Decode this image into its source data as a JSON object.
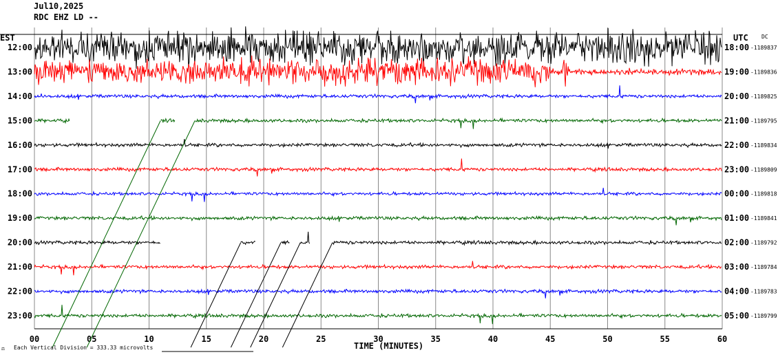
{
  "header": {
    "date": "Jul10,2025",
    "station": "RDC EHZ LD --",
    "dc_label": "DC"
  },
  "footer": {
    "scale_note": "Each Vertical Division = 333.33 microvolts",
    "corner_mark": "⚖"
  },
  "chart_data": {
    "type": "line",
    "title": "",
    "xlabel": "TIME (MINUTES)",
    "ylabel_left": "EST",
    "ylabel_right": "UTC",
    "xlim": [
      0,
      60
    ],
    "x_ticks": [
      "00",
      "05",
      "10",
      "15",
      "20",
      "25",
      "30",
      "35",
      "40",
      "45",
      "50",
      "55",
      "60"
    ],
    "colors": [
      "#000000",
      "#ff0000",
      "#0000ff",
      "#006600"
    ],
    "rows": [
      {
        "est": "12:00",
        "utc": "18:00",
        "dc": "-1189837",
        "color": "#000000",
        "amp": 1.9,
        "gaps": []
      },
      {
        "est": "13:00",
        "utc": "19:00",
        "dc": "-1189836",
        "color": "#ff0000",
        "amp": 0.35,
        "gaps": []
      },
      {
        "est": "14:00",
        "utc": "20:00",
        "dc": "-1189825",
        "color": "#0000ff",
        "amp": 0.2,
        "gaps": []
      },
      {
        "est": "15:00",
        "utc": "21:00",
        "dc": "-1189795",
        "color": "#006600",
        "amp": 0.2,
        "gaps": [
          [
            3.1,
            11.0
          ],
          [
            12.3,
            14.0
          ]
        ]
      },
      {
        "est": "16:00",
        "utc": "22:00",
        "dc": "-1189834",
        "color": "#000000",
        "amp": 0.2,
        "gaps": []
      },
      {
        "est": "17:00",
        "utc": "23:00",
        "dc": "-1189809",
        "color": "#ff0000",
        "amp": 0.2,
        "gaps": []
      },
      {
        "est": "18:00",
        "utc": "00:00",
        "dc": "-1189818",
        "color": "#0000ff",
        "amp": 0.18,
        "gaps": []
      },
      {
        "est": "19:00",
        "utc": "01:00",
        "dc": "-1189841",
        "color": "#006600",
        "amp": 0.2,
        "gaps": []
      },
      {
        "est": "20:00",
        "utc": "02:00",
        "dc": "-1189792",
        "color": "#000000",
        "amp": 0.2,
        "gaps": [
          [
            11.0,
            18.0
          ],
          [
            19.3,
            21.5
          ],
          [
            22.3,
            23.2
          ],
          [
            24.0,
            26.0
          ]
        ]
      },
      {
        "est": "21:00",
        "utc": "03:00",
        "dc": "-1189784",
        "color": "#ff0000",
        "amp": 0.2,
        "gaps": []
      },
      {
        "est": "22:00",
        "utc": "04:00",
        "dc": "-1189783",
        "color": "#0000ff",
        "amp": 0.2,
        "gaps": []
      },
      {
        "est": "23:00",
        "utc": "05:00",
        "dc": "-1189799",
        "color": "#006600",
        "amp": 0.2,
        "gaps": []
      }
    ],
    "bursts": [
      {
        "row": 1,
        "from": 0,
        "to": 45,
        "amp": 1.5,
        "color": "#ff0000"
      },
      {
        "row": 1,
        "from": 46,
        "to": 46.6,
        "amp": 1.6,
        "color": "#ff0000"
      }
    ]
  }
}
